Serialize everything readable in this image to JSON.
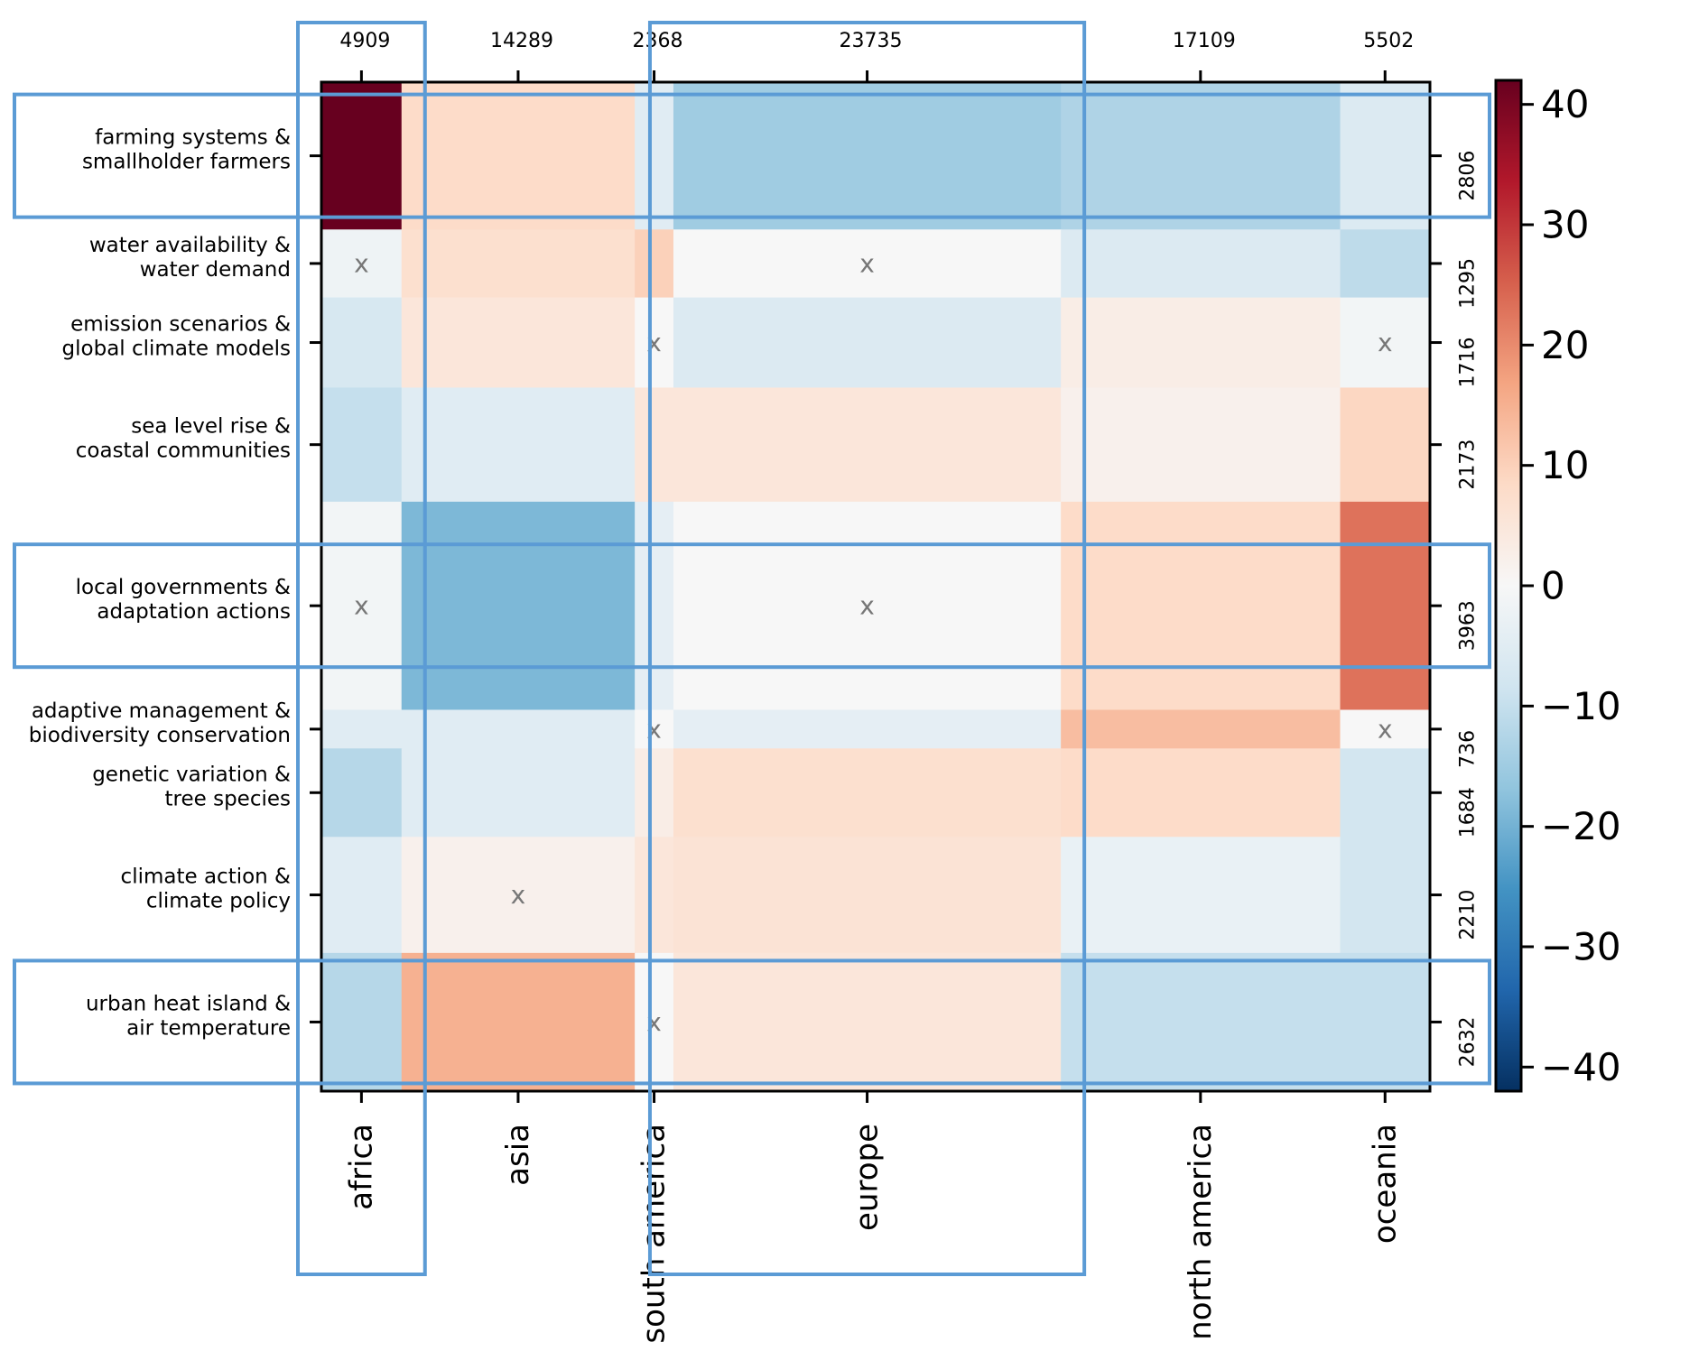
{
  "chart_data": {
    "type": "heatmap",
    "title": "",
    "xlabel": "",
    "ylabel": "",
    "columns": [
      {
        "label": "africa",
        "count": "4909",
        "weight": 4909
      },
      {
        "label": "asia",
        "count": "14289",
        "weight": 14289
      },
      {
        "label": "south america",
        "count": "2368",
        "weight": 2368
      },
      {
        "label": "europe",
        "count": "23735",
        "weight": 23735
      },
      {
        "label": "north america",
        "count": "17109",
        "weight": 17109
      },
      {
        "label": "oceania",
        "count": "5502",
        "weight": 5502
      }
    ],
    "rows": [
      {
        "label": [
          "farming systems &",
          "smallholder farmers"
        ],
        "count": "2806",
        "weight": 2806
      },
      {
        "label": [
          "water availability &",
          "water demand"
        ],
        "count": "1295",
        "weight": 1295
      },
      {
        "label": [
          "emission scenarios &",
          "global climate models"
        ],
        "count": "1716",
        "weight": 1716
      },
      {
        "label": [
          "sea level rise &",
          "coastal communities"
        ],
        "count": "2173",
        "weight": 2173
      },
      {
        "label": [
          "local governments &",
          "adaptation actions"
        ],
        "count": "3963",
        "weight": 3963
      },
      {
        "label": [
          "adaptive management &",
          "biodiversity conservation"
        ],
        "count": "736",
        "weight": 736
      },
      {
        "label": [
          "genetic variation &",
          "tree species"
        ],
        "count": "1684",
        "weight": 1684
      },
      {
        "label": [
          "climate action &",
          "climate policy"
        ],
        "count": "2210",
        "weight": 2210
      },
      {
        "label": [
          "urban heat island &",
          "air temperature"
        ],
        "count": "2632",
        "weight": 2632
      }
    ],
    "values": [
      [
        42,
        8,
        -5,
        -15,
        -13,
        -6
      ],
      [
        -2,
        7,
        10,
        0,
        -6,
        -11
      ],
      [
        -7,
        5,
        0,
        -6,
        3,
        -1
      ],
      [
        -10,
        -5,
        5,
        5,
        2,
        9
      ],
      [
        -1,
        -19,
        -4,
        0,
        8,
        23
      ],
      [
        -5,
        -5,
        0,
        -4,
        13,
        0
      ],
      [
        -12,
        -5,
        3,
        7,
        8,
        -8
      ],
      [
        -5,
        2,
        5,
        6,
        -3,
        -8
      ],
      [
        -12,
        15,
        0,
        5,
        -10,
        -10
      ]
    ],
    "insignificant_cells": [
      [
        1,
        0
      ],
      [
        1,
        3
      ],
      [
        2,
        2
      ],
      [
        2,
        5
      ],
      [
        4,
        0
      ],
      [
        4,
        3
      ],
      [
        5,
        2
      ],
      [
        5,
        5
      ],
      [
        7,
        1
      ],
      [
        8,
        2
      ]
    ],
    "marker": "x",
    "colormap": "RdBu_r",
    "zlim": [
      -42,
      42
    ],
    "colorbar_ticks": [
      "40",
      "30",
      "20",
      "10",
      "0",
      "−10",
      "−20",
      "−30",
      "−40"
    ],
    "colorbar_tick_values": [
      40,
      30,
      20,
      10,
      0,
      -10,
      -20,
      -30,
      -40
    ],
    "highlighted_columns": [
      "africa",
      "europe"
    ],
    "highlighted_rows": [
      "farming systems & smallholder farmers",
      "local governments & adaptation actions",
      "urban heat island & air temperature"
    ],
    "highlight_color": "#5b9bd5"
  }
}
